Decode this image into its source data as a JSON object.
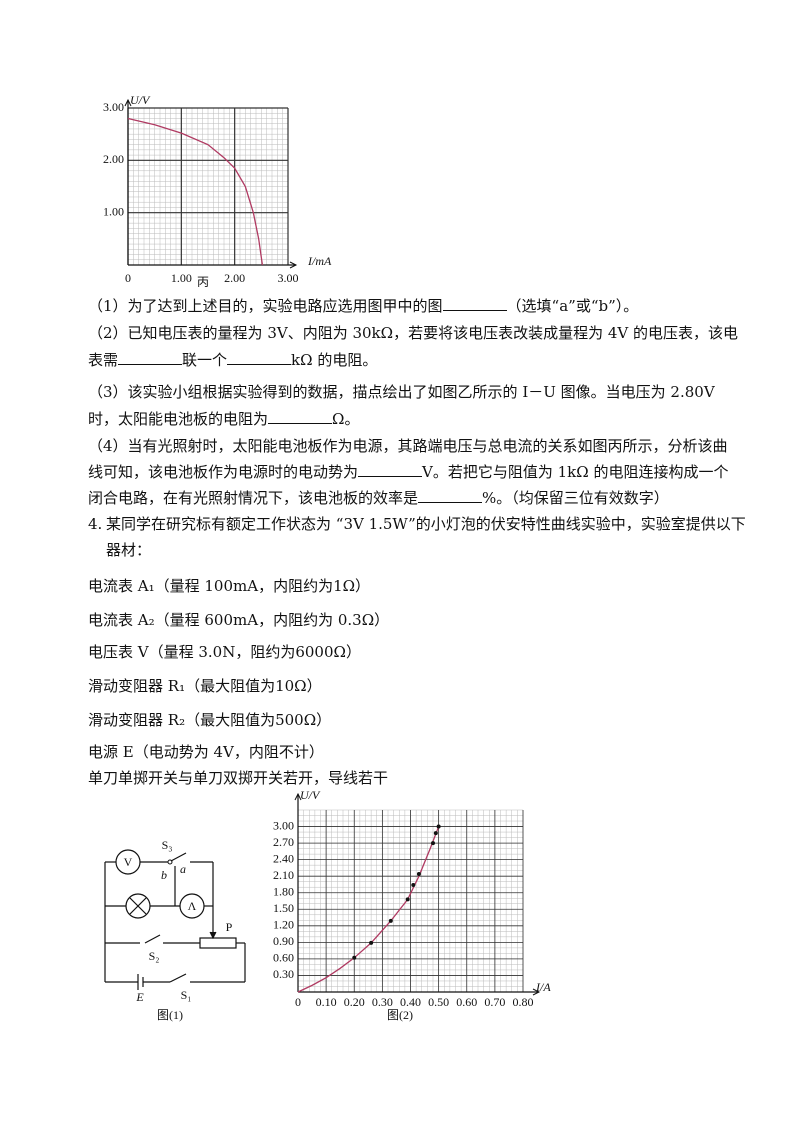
{
  "figure_c": {
    "type": "line",
    "y_label": "U/V",
    "x_label": "I/mA",
    "caption": "丙",
    "color": "#b03a62",
    "xlim": [
      0,
      3
    ],
    "ylim": [
      0,
      3
    ],
    "xticks": [
      0,
      {
        "value": 1,
        "label": "1.00"
      },
      {
        "value": 2,
        "label": "2.00"
      },
      {
        "value": 3,
        "label": "3.00"
      }
    ],
    "yticks": [
      {
        "value": 1,
        "label": "1.00"
      },
      {
        "value": 2,
        "label": "2.00"
      },
      {
        "value": 3,
        "label": "3.00"
      }
    ],
    "x": [
      0,
      0.5,
      1.0,
      1.5,
      1.8,
      2.0,
      2.2,
      2.35,
      2.45,
      2.52
    ],
    "values": [
      2.8,
      2.68,
      2.52,
      2.3,
      2.05,
      1.85,
      1.5,
      1.0,
      0.5,
      0
    ]
  },
  "lines": [
    [
      "（1）为了达到上述目的，实验电路应选用图甲中的图",
      "（选填“a”或“b”）。"
    ],
    [
      "（2）已知电压表的量程为 3V、内阻为 30kΩ，若要将该电压表改装成量程为 4V 的电压表，该电"
    ],
    [
      "表需",
      "联一个",
      "kΩ 的电阻。"
    ],
    [
      "（3）该实验小组根据实验得到的数据，描点绘出了如图乙所示的 I－U 图像。当电压为 2.80V"
    ],
    [
      "时，太阳能电池板的电阻为",
      "Ω。"
    ],
    [
      "（4）当有光照射时，太阳能电池板作为电源，其路端电压与总电流的关系如图丙所示，分析该曲"
    ],
    [
      "线可知，该电池板作为电源时的电动势为",
      "V。若把它与阻值为 1kΩ 的电阻连接构成一个"
    ],
    [
      "闭合电路，在有光照射情况下，该电池板的效率是",
      "%。（均保留三位有效数字）"
    ]
  ],
  "question_4": {
    "number": "4.",
    "lines": [
      "某同学在研究标有额定工作状态为 “3V 1.5W”的小灯泡的伏安特性曲线实验中，实验室提供以下",
      "器材："
    ],
    "items": [
      "电流表 A₁（量程 100mA，内阻约为1Ω）",
      "电流表 A₂（量程 600mA，内阻约为 0.3Ω）",
      "电压表 V（量程 3.0N，阻约为6000Ω）",
      "滑动变阻器 R₁（最大阻值为10Ω）",
      "滑动变阻器 R₂（最大阻值为500Ω）",
      "电源 E（电动势为 4V，内阻不计）",
      "单刀单掷开关与单刀双掷开关若开，导线若干"
    ]
  },
  "circuit": {
    "caption": "图(1)",
    "labels": {
      "voltmeter": "V",
      "s3": "S₃",
      "a": "a",
      "b": "b",
      "ammeter": "Λ",
      "p": "P",
      "s2": "S₂",
      "e": "E",
      "s1": "S₁"
    }
  },
  "figure_2": {
    "type": "line",
    "y_label": "U/V",
    "x_label": "I/A",
    "caption": "图(2)",
    "color": "#b03a62",
    "xlim": [
      0,
      0.8
    ],
    "ylim": [
      0,
      3.3
    ],
    "xticks": [
      0,
      {
        "value": 0.1,
        "label": "0.10"
      },
      {
        "value": 0.2,
        "label": "0.20"
      },
      {
        "value": 0.3,
        "label": "0.30"
      },
      {
        "value": 0.4,
        "label": "0.40"
      },
      {
        "value": 0.5,
        "label": "0.50"
      },
      {
        "value": 0.6,
        "label": "0.60"
      },
      {
        "value": 0.7,
        "label": "0.70"
      },
      {
        "value": 0.8,
        "label": "0.80"
      }
    ],
    "yticks": [
      {
        "value": 0.3,
        "label": "0.30"
      },
      {
        "value": 0.6,
        "label": "0.60"
      },
      {
        "value": 0.9,
        "label": "0.90"
      },
      {
        "value": 1.2,
        "label": "1.20"
      },
      {
        "value": 1.5,
        "label": "1.50"
      },
      {
        "value": 1.8,
        "label": "1.80"
      },
      {
        "value": 2.1,
        "label": "2.10"
      },
      {
        "value": 2.4,
        "label": "2.40"
      },
      {
        "value": 2.7,
        "label": "2.70"
      },
      {
        "value": 3.0,
        "label": "3.00"
      }
    ],
    "x": [
      0,
      0.05,
      0.1,
      0.15,
      0.2,
      0.26,
      0.33,
      0.39,
      0.43,
      0.47,
      0.5
    ],
    "values": [
      0,
      0.12,
      0.26,
      0.43,
      0.62,
      0.89,
      1.29,
      1.68,
      2.1,
      2.6,
      3.0
    ],
    "points": {
      "x": [
        0.2,
        0.26,
        0.33,
        0.39,
        0.41,
        0.43,
        0.48,
        0.49,
        0.5
      ],
      "values": [
        0.62,
        0.89,
        1.29,
        1.68,
        1.94,
        2.14,
        2.7,
        2.88,
        3.0
      ]
    }
  }
}
